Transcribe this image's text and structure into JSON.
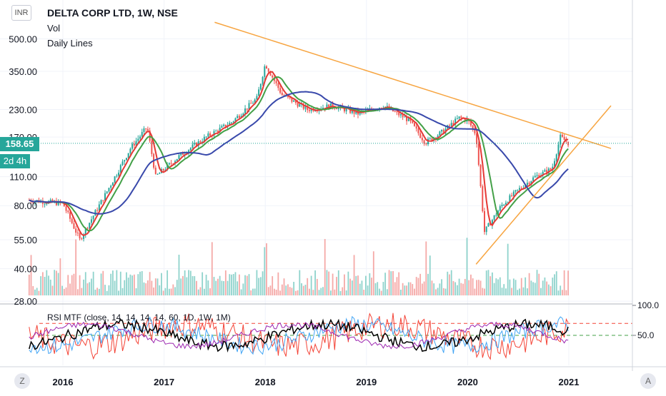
{
  "header": {
    "currency_button": "INR",
    "symbol_title": "DELTA CORP LTD, 1W, NSE",
    "indicator_vol": "Vol",
    "indicator_lines": "Daily Lines"
  },
  "last_price": {
    "value": "158.65",
    "countdown": "2d 4h"
  },
  "colors": {
    "up": "#26a69a",
    "down": "#ef5350",
    "up_volume": "#8fd3cc",
    "down_volume": "#f5a9a7",
    "trendline": "#f7a541",
    "ma_fast": "#e53935",
    "ma_mid": "#43a047",
    "ma_slow": "#3949ab",
    "rsi_red": "#f44336",
    "rsi_blue": "#42a5f5",
    "rsi_black": "#000000",
    "rsi_purple": "#9c27b0"
  },
  "chart_data": [
    {
      "type": "candlestick",
      "title": "DELTA CORP LTD, 1W, NSE",
      "yscale": "log",
      "y_ticks": [
        "500.00",
        "350.00",
        "230.00",
        "170.00",
        "110.00",
        "80.00",
        "55.00",
        "40.00",
        "28.00"
      ],
      "x_ticks": [
        "2016",
        "2017",
        "2018",
        "2019",
        "2020",
        "2021"
      ],
      "last_price": 158.65,
      "grid": true,
      "series": [
        {
          "name": "price",
          "x": [
            "2015-09",
            "2016-01",
            "2016-03",
            "2016-06",
            "2016-09",
            "2016-11",
            "2016-12",
            "2017-03",
            "2017-06",
            "2017-09",
            "2017-12",
            "2018-01",
            "2018-03",
            "2018-06",
            "2018-09",
            "2018-12",
            "2019-03",
            "2019-06",
            "2019-08",
            "2019-10",
            "2019-12",
            "2020-01",
            "2020-02",
            "2020-03",
            "2020-05",
            "2020-07",
            "2020-09",
            "2020-11",
            "2020-12",
            "2021-01"
          ],
          "y": [
            85,
            82,
            55,
            90,
            150,
            190,
            110,
            140,
            170,
            200,
            260,
            380,
            270,
            230,
            240,
            220,
            240,
            205,
            160,
            180,
            210,
            205,
            175,
            60,
            80,
            95,
            110,
            120,
            170,
            158.65
          ]
        }
      ],
      "volume_present": true,
      "trendlines": [
        {
          "from": [
            "2017-07",
            600
          ],
          "to": [
            "2021-06",
            150
          ]
        },
        {
          "from": [
            "2020-02",
            42
          ],
          "to": [
            "2021-06",
            240
          ]
        }
      ]
    },
    {
      "type": "line",
      "title": "RSI MTF (close, 14, 14, 14, 14, 60, 1D, 1W, 1M)",
      "y_ticks": [
        "100.0",
        "50.0"
      ],
      "ylim": [
        0,
        100
      ],
      "levels": [
        70,
        50
      ],
      "series": [
        {
          "name": "close"
        },
        {
          "name": "1D"
        },
        {
          "name": "1W"
        },
        {
          "name": "1M"
        }
      ]
    }
  ]
}
